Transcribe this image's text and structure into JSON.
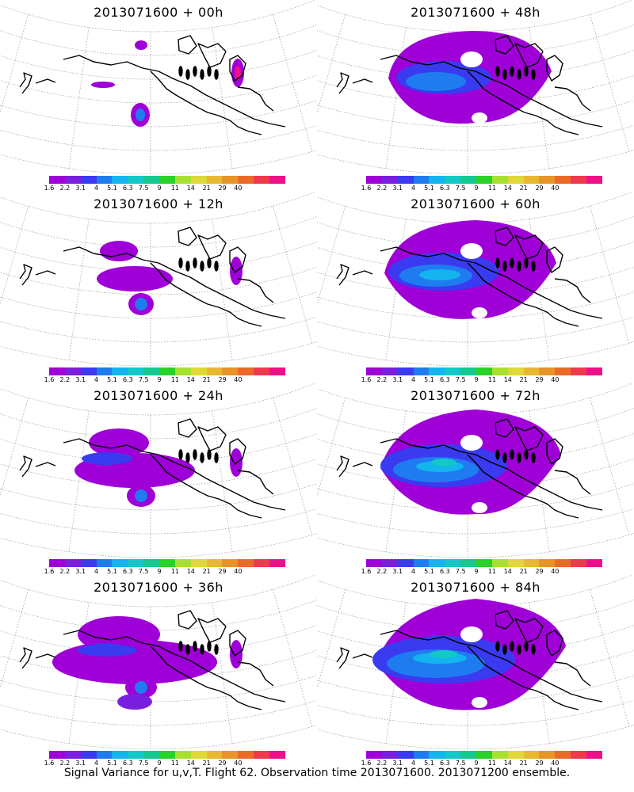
{
  "panels": [
    {
      "title": "2013071600 + 00h",
      "spread": 0
    },
    {
      "title": "2013071600 + 48h",
      "spread": 4
    },
    {
      "title": "2013071600 + 12h",
      "spread": 1
    },
    {
      "title": "2013071600 + 60h",
      "spread": 5
    },
    {
      "title": "2013071600 + 24h",
      "spread": 2
    },
    {
      "title": "2013071600 + 72h",
      "spread": 6
    },
    {
      "title": "2013071600 + 36h",
      "spread": 3
    },
    {
      "title": "2013071600 + 84h",
      "spread": 7
    }
  ],
  "colorbar": {
    "colors": [
      "#9f00d8",
      "#7a1fe0",
      "#3a3af0",
      "#1f7cf0",
      "#14b4ee",
      "#12c8c8",
      "#14c890",
      "#28d228",
      "#a8e030",
      "#e0d838",
      "#e8b830",
      "#e89428",
      "#ec6a28",
      "#ee3a4c",
      "#ee1088"
    ],
    "labels": [
      "1.6",
      "2.2",
      "3.1",
      "4",
      "5.1",
      "6.3",
      "7.5",
      "9",
      "11",
      "14",
      "21",
      "29",
      "40"
    ]
  },
  "caption": "Signal Variance for u,v,T. Flight 62. Observation time 2013071600. 2013071200 ensemble."
}
